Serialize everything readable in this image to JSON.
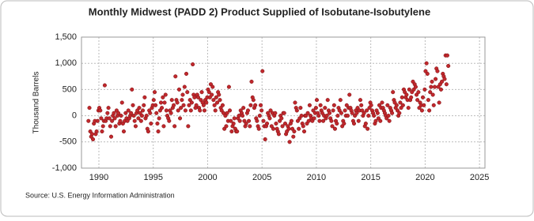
{
  "chart_data": {
    "type": "scatter",
    "title": "Monthly Midwest (PADD 2) Product Supplied of Isobutane-Isobutylene",
    "y_label": "Thousand Barrels",
    "source": "Source: U.S. Energy Information Administration",
    "color": "#c0282d",
    "grid": true,
    "xlim": [
      1988.4,
      2025.5
    ],
    "ylim": [
      -1000,
      1500
    ],
    "xticks": [
      1990,
      1995,
      2000,
      2005,
      2010,
      2015,
      2020,
      2025
    ],
    "yticks": [
      {
        "value": -1000,
        "label": "-1,000"
      },
      -500,
      0,
      500,
      {
        "value": 1000,
        "label": "1,000"
      },
      {
        "value": 1500,
        "label": "1,500"
      }
    ],
    "x": [
      1989.04,
      1989.13,
      1989.21,
      1989.29,
      1989.38,
      1989.46,
      1989.54,
      1989.63,
      1989.71,
      1989.79,
      1989.88,
      1989.96,
      1990.04,
      1990.13,
      1990.21,
      1990.29,
      1990.38,
      1990.46,
      1990.54,
      1990.63,
      1990.71,
      1990.79,
      1990.88,
      1990.96,
      1991.04,
      1991.13,
      1991.21,
      1991.29,
      1991.38,
      1991.46,
      1991.54,
      1991.63,
      1991.71,
      1991.79,
      1991.88,
      1991.96,
      1992.04,
      1992.13,
      1992.21,
      1992.29,
      1992.38,
      1992.46,
      1992.54,
      1992.63,
      1992.71,
      1992.79,
      1992.88,
      1992.96,
      1993.04,
      1993.13,
      1993.21,
      1993.29,
      1993.38,
      1993.46,
      1993.54,
      1993.63,
      1993.71,
      1993.79,
      1993.88,
      1993.96,
      1994.04,
      1994.13,
      1994.21,
      1994.29,
      1994.38,
      1994.46,
      1994.54,
      1994.63,
      1994.71,
      1994.79,
      1994.88,
      1994.96,
      1995.04,
      1995.13,
      1995.21,
      1995.29,
      1995.38,
      1995.46,
      1995.54,
      1995.63,
      1995.71,
      1995.79,
      1995.88,
      1995.96,
      1996.04,
      1996.13,
      1996.21,
      1996.29,
      1996.38,
      1996.46,
      1996.54,
      1996.63,
      1996.71,
      1996.79,
      1996.88,
      1996.96,
      1997.04,
      1997.13,
      1997.21,
      1997.29,
      1997.38,
      1997.46,
      1997.54,
      1997.63,
      1997.71,
      1997.79,
      1997.88,
      1997.96,
      1998.04,
      1998.13,
      1998.21,
      1998.29,
      1998.38,
      1998.46,
      1998.54,
      1998.63,
      1998.71,
      1998.79,
      1998.88,
      1998.96,
      1999.04,
      1999.13,
      1999.21,
      1999.29,
      1999.38,
      1999.46,
      1999.54,
      1999.63,
      1999.71,
      1999.79,
      1999.88,
      1999.96,
      2000.04,
      2000.13,
      2000.21,
      2000.29,
      2000.38,
      2000.46,
      2000.54,
      2000.63,
      2000.71,
      2000.79,
      2000.88,
      2000.96,
      2001.04,
      2001.13,
      2001.21,
      2001.29,
      2001.38,
      2001.46,
      2001.54,
      2001.63,
      2001.71,
      2001.79,
      2001.88,
      2001.96,
      2002.04,
      2002.13,
      2002.21,
      2002.29,
      2002.38,
      2002.46,
      2002.54,
      2002.63,
      2002.71,
      2002.79,
      2002.88,
      2002.96,
      2003.04,
      2003.13,
      2003.21,
      2003.29,
      2003.38,
      2003.46,
      2003.54,
      2003.63,
      2003.71,
      2003.79,
      2003.88,
      2003.96,
      2004.04,
      2004.13,
      2004.21,
      2004.29,
      2004.38,
      2004.46,
      2004.54,
      2004.63,
      2004.71,
      2004.79,
      2004.88,
      2004.96,
      2005.04,
      2005.13,
      2005.21,
      2005.29,
      2005.38,
      2005.46,
      2005.54,
      2005.63,
      2005.71,
      2005.79,
      2005.88,
      2005.96,
      2006.04,
      2006.13,
      2006.21,
      2006.29,
      2006.38,
      2006.46,
      2006.54,
      2006.63,
      2006.71,
      2006.79,
      2006.88,
      2006.96,
      2007.04,
      2007.13,
      2007.21,
      2007.29,
      2007.38,
      2007.46,
      2007.54,
      2007.63,
      2007.71,
      2007.79,
      2007.88,
      2007.96,
      2008.04,
      2008.13,
      2008.21,
      2008.29,
      2008.38,
      2008.46,
      2008.54,
      2008.63,
      2008.71,
      2008.79,
      2008.88,
      2008.96,
      2009.04,
      2009.13,
      2009.21,
      2009.29,
      2009.38,
      2009.46,
      2009.54,
      2009.63,
      2009.71,
      2009.79,
      2009.88,
      2009.96,
      2010.04,
      2010.13,
      2010.21,
      2010.29,
      2010.38,
      2010.46,
      2010.54,
      2010.63,
      2010.71,
      2010.79,
      2010.88,
      2010.96,
      2011.04,
      2011.13,
      2011.21,
      2011.29,
      2011.38,
      2011.46,
      2011.54,
      2011.63,
      2011.71,
      2011.79,
      2011.88,
      2011.96,
      2012.04,
      2012.13,
      2012.21,
      2012.29,
      2012.38,
      2012.46,
      2012.54,
      2012.63,
      2012.71,
      2012.79,
      2012.88,
      2012.96,
      2013.04,
      2013.13,
      2013.21,
      2013.29,
      2013.38,
      2013.46,
      2013.54,
      2013.63,
      2013.71,
      2013.79,
      2013.88,
      2013.96,
      2014.04,
      2014.13,
      2014.21,
      2014.29,
      2014.38,
      2014.46,
      2014.54,
      2014.63,
      2014.71,
      2014.79,
      2014.88,
      2014.96,
      2015.04,
      2015.13,
      2015.21,
      2015.29,
      2015.38,
      2015.46,
      2015.54,
      2015.63,
      2015.71,
      2015.79,
      2015.88,
      2015.96,
      2016.04,
      2016.13,
      2016.21,
      2016.29,
      2016.38,
      2016.46,
      2016.54,
      2016.63,
      2016.71,
      2016.79,
      2016.88,
      2016.96,
      2017.04,
      2017.13,
      2017.21,
      2017.29,
      2017.38,
      2017.46,
      2017.54,
      2017.63,
      2017.71,
      2017.79,
      2017.88,
      2017.96,
      2018.04,
      2018.13,
      2018.21,
      2018.29,
      2018.38,
      2018.46,
      2018.54,
      2018.63,
      2018.71,
      2018.79,
      2018.88,
      2018.96,
      2019.04,
      2019.13,
      2019.21,
      2019.29,
      2019.38,
      2019.46,
      2019.54,
      2019.63,
      2019.71,
      2019.79,
      2019.88,
      2019.96,
      2020.04,
      2020.13,
      2020.21,
      2020.29,
      2020.38,
      2020.46,
      2020.54,
      2020.63,
      2020.71,
      2020.79,
      2020.88,
      2020.96,
      2021.04,
      2021.13,
      2021.21,
      2021.29,
      2021.38,
      2021.46,
      2021.54,
      2021.63,
      2021.71,
      2021.79,
      2021.88,
      2021.96,
      2022.04,
      2022.13
    ],
    "values": [
      -100,
      150,
      -300,
      -400,
      -350,
      -450,
      -150,
      -100,
      -350,
      -300,
      -100,
      100,
      150,
      100,
      -50,
      -300,
      -200,
      -100,
      580,
      -100,
      -50,
      50,
      150,
      -50,
      -200,
      -400,
      -100,
      0,
      50,
      -50,
      -200,
      100,
      0,
      50,
      -150,
      -100,
      0,
      250,
      -150,
      -300,
      -100,
      50,
      -50,
      -100,
      100,
      -50,
      0,
      50,
      500,
      200,
      0,
      -100,
      -200,
      50,
      100,
      -50,
      150,
      50,
      -100,
      0,
      100,
      200,
      350,
      -50,
      0,
      -250,
      -300,
      100,
      50,
      -150,
      150,
      200,
      300,
      450,
      200,
      50,
      -150,
      -300,
      -50,
      100,
      250,
      150,
      350,
      -200,
      250,
      400,
      100,
      0,
      -50,
      -100,
      100,
      50,
      300,
      150,
      200,
      -200,
      750,
      300,
      250,
      100,
      500,
      -50,
      150,
      300,
      400,
      200,
      550,
      100,
      800,
      450,
      -200,
      200,
      300,
      100,
      250,
      980,
      400,
      350,
      150,
      200,
      400,
      350,
      150,
      100,
      300,
      450,
      250,
      200,
      100,
      300,
      250,
      350,
      500,
      450,
      350,
      600,
      400,
      550,
      300,
      200,
      100,
      350,
      250,
      450,
      400,
      300,
      150,
      100,
      200,
      50,
      -250,
      0,
      -200,
      50,
      -100,
      550,
      100,
      -100,
      -300,
      -200,
      -150,
      -50,
      -250,
      -300,
      -300,
      -50,
      0,
      -100,
      100,
      50,
      0,
      150,
      -100,
      -200,
      -150,
      50,
      100,
      -100,
      -200,
      200,
      650,
      350,
      300,
      150,
      200,
      -50,
      -100,
      -200,
      -250,
      0,
      200,
      100,
      850,
      -100,
      -200,
      -450,
      -200,
      -150,
      50,
      0,
      -50,
      100,
      -200,
      50,
      -250,
      0,
      50,
      -150,
      -250,
      -300,
      -350,
      -100,
      0,
      -50,
      -200,
      50,
      50,
      -150,
      -350,
      -300,
      -200,
      -250,
      -500,
      -150,
      -100,
      -250,
      -400,
      -300,
      250,
      150,
      100,
      -100,
      -250,
      -50,
      150,
      0,
      -150,
      -200,
      -300,
      0,
      0,
      -150,
      50,
      -100,
      200,
      0,
      -50,
      -100,
      100,
      -50,
      50,
      150,
      300,
      50,
      0,
      -100,
      200,
      100,
      50,
      -100,
      0,
      150,
      -50,
      0,
      300,
      100,
      50,
      -50,
      -100,
      -200,
      100,
      200,
      -250,
      -100,
      -150,
      0,
      150,
      100,
      300,
      50,
      -200,
      -100,
      -150,
      100,
      0,
      200,
      0,
      150,
      400,
      150,
      100,
      50,
      -100,
      -150,
      0,
      100,
      50,
      150,
      -100,
      100,
      300,
      200,
      100,
      0,
      50,
      -200,
      -150,
      100,
      -250,
      0,
      150,
      250,
      200,
      100,
      50,
      0,
      -150,
      -100,
      100,
      50,
      -50,
      200,
      -100,
      150,
      250,
      150,
      100,
      50,
      0,
      -50,
      200,
      0,
      -100,
      150,
      100,
      50,
      450,
      300,
      250,
      150,
      200,
      100,
      0,
      50,
      250,
      150,
      350,
      200,
      500,
      450,
      350,
      400,
      300,
      150,
      500,
      300,
      350,
      450,
      650,
      500,
      600,
      550,
      400,
      300,
      450,
      150,
      250,
      200,
      100,
      350,
      200,
      500,
      850,
      1000,
      800,
      300,
      100,
      450,
      550,
      650,
      400,
      200,
      550,
      700,
      900,
      850,
      550,
      250,
      600,
      500,
      650,
      800,
      750,
      700,
      1150,
      600,
      1150,
      950
    ]
  }
}
